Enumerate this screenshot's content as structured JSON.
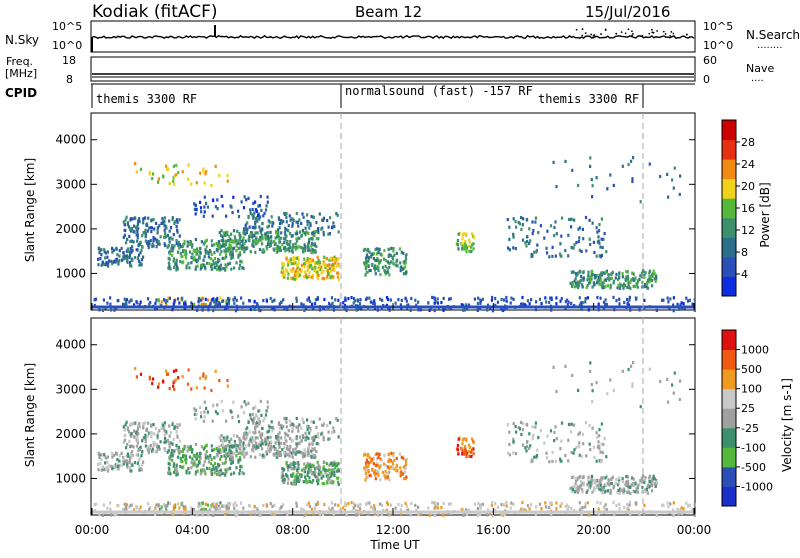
{
  "header": {
    "station": "Kodiak (fitACF)",
    "beam": "Beam 12",
    "date": "15/Jul/2016"
  },
  "colors": {
    "power": [
      "#0b2fe0",
      "#2a4fb8",
      "#2b6f8c",
      "#3e8f6e",
      "#55b83a",
      "#f0d21a",
      "#f08a12",
      "#e6300f",
      "#cc0000"
    ],
    "velocity": [
      "#e01010",
      "#f05a10",
      "#f09a20",
      "#c8c8c8",
      "#a0a0a0",
      "#3e8f6e",
      "#55b83a",
      "#2a4fb8",
      "#1a30c8"
    ]
  },
  "chart_data": [
    {
      "type": "line",
      "name": "nsky-nsearch",
      "left_label": "N.Sky",
      "right_label": "N.Search",
      "left_ticks": [
        "10^5",
        "10^0"
      ],
      "right_ticks": [
        "10^5",
        "10^0"
      ],
      "dots_label": "........"
    },
    {
      "type": "line",
      "name": "freq-nave",
      "left_label_top": "Freq.",
      "left_label_bottom": "[MHz]",
      "right_label": "Nave",
      "left_ticks": [
        18,
        8
      ],
      "right_ticks": [
        60,
        0
      ],
      "dots_label": "....",
      "cpid_label": "CPID",
      "cpid_segments": [
        {
          "label": "themis 3300 RF",
          "start_h": 0,
          "end_h": 10
        },
        {
          "label": "normalsound (fast) -157 RF",
          "start_h": 10,
          "end_h": 22
        },
        {
          "label": "themis 3300 RF",
          "start_h": 18.8,
          "end_h": 22
        }
      ]
    },
    {
      "type": "heatmap",
      "name": "power",
      "ylabel": "Slant Range [km]",
      "ylim": [
        180,
        4600
      ],
      "y_ticks": [
        1000,
        2000,
        3000,
        4000
      ],
      "colorbar_label": "Power [dB]",
      "colorbar_ticks": [
        "4",
        "8",
        "12",
        "16",
        "20",
        "24",
        "28"
      ]
    },
    {
      "type": "heatmap",
      "name": "velocity",
      "ylabel": "Slant Range [km]",
      "ylim": [
        180,
        4600
      ],
      "y_ticks": [
        1000,
        2000,
        3000,
        4000
      ],
      "colorbar_label": "Velocity [m s-1]",
      "colorbar_ticks": [
        "1000",
        "500",
        "100",
        "25",
        "-25",
        "-100",
        "-500",
        "-1000"
      ]
    }
  ],
  "x_axis": {
    "label": "Time UT",
    "ticks": [
      "00:00",
      "04:00",
      "08:00",
      "12:00",
      "16:00",
      "20:00",
      "00:00"
    ],
    "xlim_hours": [
      0,
      24
    ]
  },
  "scatter_regions": [
    {
      "t0": 1.5,
      "t1": 5.5,
      "r0": 3000,
      "r1": 3550,
      "n": 40,
      "p": 5,
      "v": 1
    },
    {
      "t0": 0.2,
      "t1": 2.0,
      "r0": 1200,
      "r1": 1600,
      "n": 90,
      "p": 2,
      "v": 4
    },
    {
      "t0": 1.2,
      "t1": 3.5,
      "r0": 1600,
      "r1": 2300,
      "n": 150,
      "p": 2,
      "v": 4
    },
    {
      "t0": 3.0,
      "t1": 6.0,
      "r0": 1100,
      "r1": 1800,
      "n": 220,
      "p": 3,
      "v": 5
    },
    {
      "t0": 5.0,
      "t1": 9.0,
      "r0": 1500,
      "r1": 2000,
      "n": 260,
      "p": 3,
      "v": 4
    },
    {
      "t0": 7.5,
      "t1": 9.8,
      "r0": 900,
      "r1": 1400,
      "n": 180,
      "p": 5,
      "v": 5
    },
    {
      "t0": 6.0,
      "t1": 9.8,
      "r0": 1900,
      "r1": 2400,
      "n": 120,
      "p": 2,
      "v": 4
    },
    {
      "t0": 4.0,
      "t1": 7.0,
      "r0": 2300,
      "r1": 2800,
      "n": 50,
      "p": 1,
      "v": 4
    },
    {
      "t0": 2.5,
      "t1": 5.5,
      "r0": 300,
      "r1": 500,
      "n": 40,
      "p": 5,
      "v": 5
    },
    {
      "t0": 10.8,
      "t1": 12.5,
      "r0": 1000,
      "r1": 1600,
      "n": 120,
      "p": 3,
      "v": 2
    },
    {
      "t0": 14.5,
      "t1": 15.2,
      "r0": 1500,
      "r1": 1950,
      "n": 40,
      "p": 4,
      "v": 1
    },
    {
      "t0": 16.5,
      "t1": 20.5,
      "r0": 1400,
      "r1": 2300,
      "n": 110,
      "p": 2,
      "v": 4
    },
    {
      "t0": 19.0,
      "t1": 22.5,
      "r0": 700,
      "r1": 1100,
      "n": 200,
      "p": 3,
      "v": 4
    },
    {
      "t0": 0.0,
      "t1": 24.0,
      "r0": 200,
      "r1": 500,
      "n": 420,
      "p": 1,
      "v": 3
    },
    {
      "t0": 18.0,
      "t1": 23.5,
      "r0": 2600,
      "r1": 3700,
      "n": 30,
      "p": 2,
      "v": 4
    }
  ]
}
